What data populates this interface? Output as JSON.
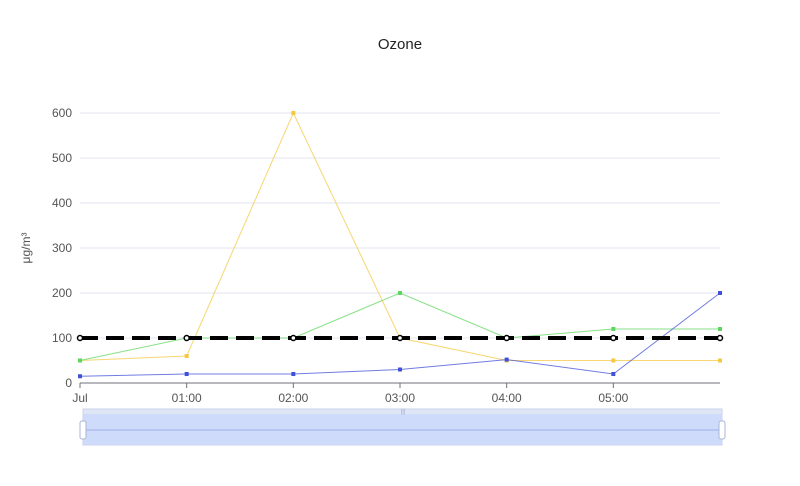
{
  "chart_data": {
    "type": "line",
    "title": "Ozone",
    "xlabel": "",
    "ylabel": "μg/m³",
    "x_tick_labels": [
      "Jul",
      "01:00",
      "02:00",
      "03:00",
      "04:00",
      "05:00"
    ],
    "x_hours": [
      0,
      1,
      2,
      3,
      4,
      5,
      6
    ],
    "ylim": [
      0,
      600
    ],
    "y_ticks": [
      0,
      100,
      200,
      300,
      400,
      500,
      600
    ],
    "grid": true,
    "series": [
      {
        "color": "#f5c842",
        "style": "solid",
        "values": [
          50,
          60,
          600,
          100,
          50,
          50,
          50
        ]
      },
      {
        "color": "#5cd65c",
        "style": "solid",
        "values": [
          50,
          100,
          100,
          200,
          100,
          120,
          120
        ]
      },
      {
        "color": "#4050d8",
        "style": "solid",
        "values": [
          15,
          20,
          20,
          30,
          52,
          20,
          200
        ]
      },
      {
        "color": "#000000",
        "style": "dashed",
        "values": [
          100,
          100,
          100,
          100,
          100,
          100,
          100
        ]
      }
    ]
  },
  "slider": {
    "handle_label": "|||"
  }
}
